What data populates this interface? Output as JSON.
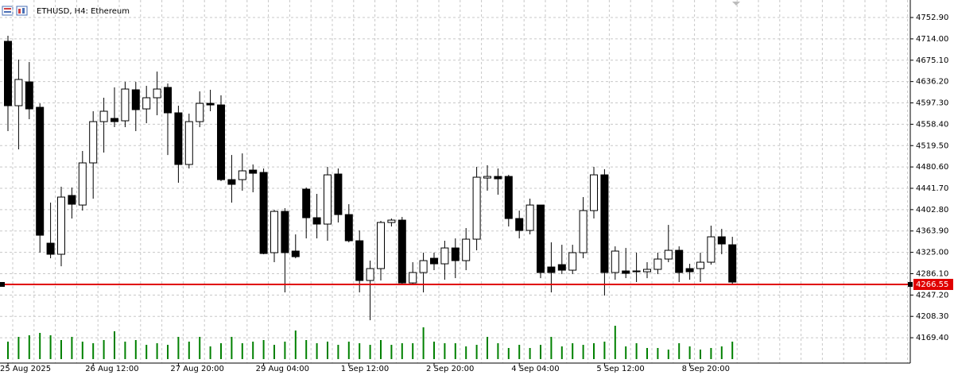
{
  "chart_data": {
    "type": "candlestick",
    "title": "ETHUSD, H4:  Ethereum",
    "categories": [
      "25 Aug 2025",
      null,
      null,
      null,
      null,
      null,
      null,
      null,
      "26 Aug 12:00",
      null,
      null,
      null,
      null,
      null,
      null,
      null,
      "27 Aug 20:00",
      null,
      null,
      null,
      null,
      null,
      null,
      null,
      "29 Aug 04:00",
      null,
      null,
      null,
      null,
      null,
      null,
      null,
      "1 Sep 12:00",
      null,
      null,
      null,
      null,
      null,
      null,
      null,
      "2 Sep 20:00",
      null,
      null,
      null,
      null,
      null,
      null,
      null,
      "4 Sep 04:00",
      null,
      null,
      null,
      null,
      null,
      null,
      null,
      "5 Sep 12:00",
      null,
      null,
      null,
      null,
      null,
      null,
      null,
      "8 Sep 20:00",
      null,
      null,
      null,
      null
    ],
    "open": [
      4709.5,
      4592.2,
      4635.6,
      4589.3,
      4341.7,
      4321.5,
      4428.6,
      4411.2,
      4488.0,
      4563.2,
      4569.0,
      4564.7,
      4621.2,
      4586.4,
      4606.7,
      4625.5,
      4579.2,
      4485.1,
      4563.2,
      4596.5,
      4593.6,
      4457.5,
      4457.5,
      4474.9,
      4470.6,
      4324.4,
      4399.6,
      4327.3,
      4440.2,
      4388.1,
      4376.5,
      4467.7,
      4393.8,
      4346.1,
      4273.7,
      4295.4,
      4379.4,
      4383.7,
      4269.3,
      4288.2,
      4314.2,
      4304.1,
      4333.0,
      4309.9,
      4349.0,
      4460.4,
      4463.3,
      4463.3,
      4386.6,
      4364.9,
      4411.2,
      4298.3,
      4302.6,
      4292.5,
      4324.4,
      4401.1,
      4466.2,
      4288.2,
      4291.1,
      4291.1,
      4289.6,
      4294.0,
      4312.8,
      4328.7,
      4295.4,
      4295.4,
      4307.0,
      4353.3,
      4338.8
    ],
    "high": [
      4719.6,
      4676.2,
      4671.8,
      4596.5,
      4415.6,
      4444.5,
      4443.1,
      4509.7,
      4582.1,
      4606.7,
      4625.5,
      4635.6,
      4635.6,
      4628.4,
      4654.4,
      4632.7,
      4592.2,
      4577.7,
      4618.3,
      4621.2,
      4611.0,
      4502.4,
      4505.3,
      4485.1,
      4477.8,
      4402.5,
      4405.4,
      4357.7,
      4443.1,
      4431.5,
      4480.7,
      4477.8,
      4412.7,
      4364.9,
      4309.9,
      4382.3,
      4386.6,
      4389.5,
      4307.0,
      4324.4,
      4324.4,
      4346.1,
      4350.4,
      4369.2,
      4480.7,
      4483.6,
      4477.8,
      4466.2,
      4401.1,
      4422.8,
      4411.2,
      4343.2,
      4338.8,
      4338.8,
      4425.7,
      4480.7,
      4476.4,
      4335.9,
      4333.0,
      4324.4,
      4307.0,
      4324.4,
      4375.0,
      4335.9,
      4304.1,
      4324.4,
      4373.6,
      4367.8,
      4353.3
    ],
    "low": [
      4545.9,
      4512.6,
      4567.6,
      4324.4,
      4314.2,
      4299.7,
      4386.6,
      4401.1,
      4422.8,
      4506.8,
      4553.1,
      4553.1,
      4545.9,
      4560.3,
      4574.8,
      4502.4,
      4451.8,
      4477.8,
      4553.1,
      4582.1,
      4454.7,
      4415.6,
      4437.3,
      4434.4,
      4321.5,
      4307.0,
      4252.0,
      4314.2,
      4350.4,
      4350.4,
      4346.1,
      4379.4,
      4343.2,
      4252.0,
      4201.3,
      4273.7,
      4372.1,
      4267.9,
      4267.9,
      4252.0,
      4292.5,
      4275.1,
      4278.0,
      4292.5,
      4328.7,
      4437.3,
      4430.0,
      4372.1,
      4350.4,
      4357.7,
      4278.0,
      4252.0,
      4285.3,
      4285.3,
      4314.2,
      4386.6,
      4246.2,
      4275.1,
      4278.0,
      4270.8,
      4278.0,
      4285.3,
      4307.0,
      4270.8,
      4275.1,
      4270.8,
      4302.6,
      4321.5,
      4267.9
    ],
    "close": [
      4592.2,
      4640.0,
      4586.4,
      4356.2,
      4321.5,
      4425.7,
      4412.7,
      4488.0,
      4563.2,
      4582.1,
      4563.2,
      4622.6,
      4585.0,
      4606.7,
      4622.6,
      4579.2,
      4485.1,
      4563.2,
      4596.5,
      4593.6,
      4457.5,
      4448.9,
      4473.5,
      4469.1,
      4322.9,
      4399.6,
      4324.4,
      4317.1,
      4388.1,
      4376.5,
      4466.2,
      4393.8,
      4346.1,
      4273.7,
      4295.4,
      4379.4,
      4383.7,
      4269.3,
      4288.2,
      4309.9,
      4304.1,
      4333.0,
      4309.9,
      4349.0,
      4461.9,
      4463.3,
      4459.0,
      4386.6,
      4364.9,
      4411.2,
      4288.2,
      4288.2,
      4292.5,
      4324.4,
      4401.1,
      4466.2,
      4288.2,
      4327.3,
      4286.7,
      4289.6,
      4294.0,
      4312.8,
      4328.7,
      4288.2,
      4289.6,
      4307.0,
      4353.3,
      4340.3,
      4270.8
    ],
    "volume": [
      22,
      28,
      30,
      33,
      30,
      24,
      28,
      22,
      20,
      24,
      35,
      22,
      24,
      18,
      20,
      18,
      28,
      22,
      28,
      16,
      20,
      28,
      20,
      22,
      24,
      18,
      22,
      36,
      24,
      20,
      22,
      18,
      22,
      20,
      18,
      24,
      18,
      20,
      20,
      40,
      22,
      20,
      20,
      16,
      18,
      28,
      20,
      14,
      18,
      14,
      18,
      28,
      16,
      20,
      18,
      20,
      22,
      42,
      16,
      20,
      14,
      14,
      12,
      20,
      16,
      12,
      14,
      16,
      22
    ],
    "up_color": "#ffffff",
    "down_color": "#000000",
    "volume_color": "#008000",
    "ylim": [
      4123.2,
      4784.8
    ],
    "yticks": [
      {
        "value": 4752.9,
        "label": "4752.90"
      },
      {
        "value": 4714.0,
        "label": "4714.00"
      },
      {
        "value": 4675.1,
        "label": "4675.10"
      },
      {
        "value": 4636.2,
        "label": "4636.20"
      },
      {
        "value": 4597.3,
        "label": "4597.30"
      },
      {
        "value": 4558.4,
        "label": "4558.40"
      },
      {
        "value": 4519.5,
        "label": "4519.50"
      },
      {
        "value": 4480.6,
        "label": "4480.60"
      },
      {
        "value": 4441.7,
        "label": "4441.70"
      },
      {
        "value": 4402.8,
        "label": "4402.80"
      },
      {
        "value": 4363.9,
        "label": "4363.90"
      },
      {
        "value": 4325.0,
        "label": "4325.00"
      },
      {
        "value": 4286.1,
        "label": "4286.10"
      },
      {
        "value": 4247.2,
        "label": "4247.20"
      },
      {
        "value": 4208.3,
        "label": "4208.30"
      },
      {
        "value": 4169.4,
        "label": "4169.40"
      }
    ],
    "grid": true,
    "price_line": {
      "value": 4266.55,
      "label": "4266.55",
      "color": "#e00000"
    }
  }
}
